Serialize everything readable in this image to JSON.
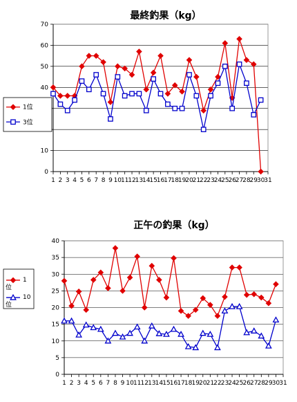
{
  "chart_data": [
    {
      "type": "line",
      "title": "最終釣果（kg）",
      "ylim": [
        0,
        70
      ],
      "yticks": [
        0,
        10,
        20,
        30,
        40,
        50,
        60,
        70
      ],
      "x": [
        1,
        2,
        3,
        4,
        5,
        6,
        7,
        8,
        9,
        10,
        11,
        12,
        13,
        14,
        15,
        16,
        17,
        18,
        19,
        20,
        21,
        22,
        23,
        24,
        25,
        26,
        27,
        28,
        29,
        30,
        31
      ],
      "grid": true,
      "legend_placement": "left",
      "series": [
        {
          "name": "1位",
          "color": "#e00000",
          "marker": "diamond-filled",
          "values": [
            40,
            36,
            36,
            36,
            50,
            55,
            55,
            52,
            33,
            50,
            49,
            46,
            57,
            39,
            47,
            55,
            37,
            41,
            38,
            53,
            45,
            29,
            39,
            45,
            61,
            35,
            63,
            53,
            51,
            0,
            null
          ]
        },
        {
          "name": "3位",
          "color": "#0000cc",
          "marker": "square-open",
          "values": [
            37,
            32,
            29,
            34,
            43,
            39,
            46,
            37,
            25,
            45,
            36,
            37,
            37,
            29,
            44,
            37,
            32,
            30,
            30,
            46,
            36,
            20,
            36,
            42,
            50,
            30,
            51,
            42,
            27,
            34,
            null
          ]
        }
      ]
    },
    {
      "type": "line",
      "title": "正午の釣果（kg）",
      "ylim": [
        0,
        40
      ],
      "yticks": [
        0,
        5,
        10,
        15,
        20,
        25,
        30,
        35,
        40
      ],
      "x": [
        1,
        2,
        3,
        4,
        5,
        6,
        7,
        8,
        9,
        10,
        11,
        12,
        13,
        14,
        15,
        16,
        17,
        18,
        19,
        20,
        21,
        22,
        23,
        24,
        25,
        26,
        27,
        28,
        29,
        30,
        31
      ],
      "grid": true,
      "legend_placement": "left",
      "series": [
        {
          "name": "1位",
          "color": "#e00000",
          "marker": "diamond-filled",
          "values": [
            28,
            20.5,
            24.8,
            19.3,
            28.3,
            30.5,
            25.8,
            37.8,
            25,
            29,
            35.3,
            20,
            32.5,
            28.3,
            23,
            34.8,
            19,
            17.5,
            19.3,
            22.8,
            20.8,
            17.5,
            23.2,
            32,
            32,
            23.8,
            24,
            23,
            21.3,
            27,
            null
          ]
        },
        {
          "name": "10位",
          "color": "#0000cc",
          "marker": "triangle-open",
          "values": [
            16,
            16,
            11.8,
            14.8,
            14,
            13.5,
            10,
            12.3,
            11.2,
            12.3,
            14.2,
            10,
            14.5,
            12.2,
            12,
            13.5,
            12,
            8.3,
            8,
            12.3,
            12,
            8,
            19,
            20.3,
            20.3,
            12.5,
            13,
            11.5,
            8.5,
            16.3,
            null
          ]
        }
      ]
    }
  ]
}
